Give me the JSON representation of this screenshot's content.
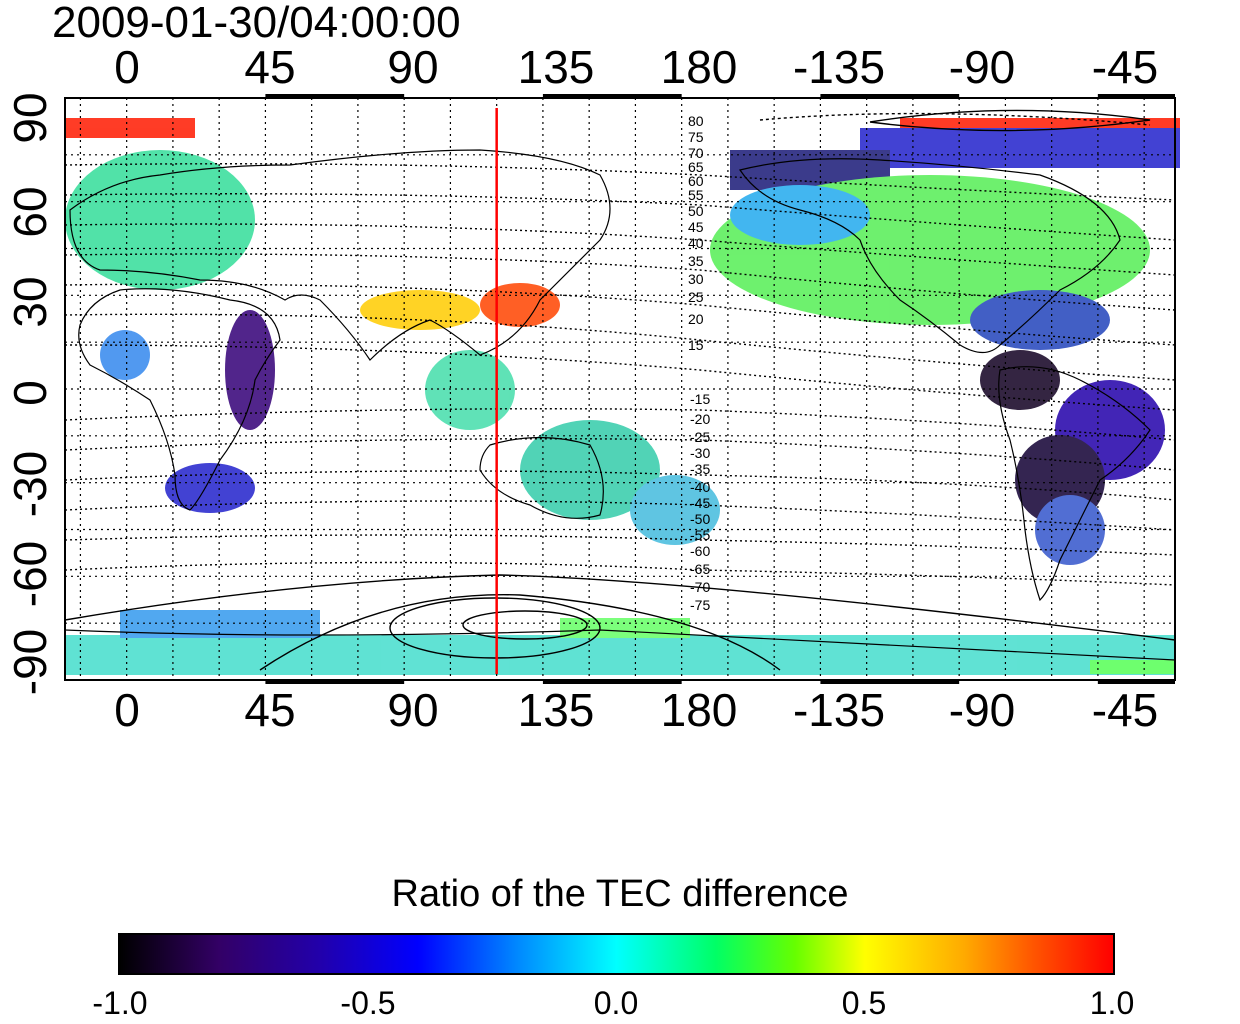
{
  "timestamp": "2009-01-30/04:00:00",
  "lon_tick_labels": [
    "0",
    "45",
    "90",
    "135",
    "180",
    "-135",
    "-90",
    "-45"
  ],
  "lat_tick_labels": [
    "90",
    "60",
    "30",
    "0",
    "-30",
    "-60",
    "-90"
  ],
  "contour_labels_north": [
    "80",
    "75",
    "70",
    "65",
    "60",
    "55",
    "50",
    "45",
    "40",
    "35",
    "30",
    "25",
    "20",
    "15"
  ],
  "contour_labels_south": [
    "-15",
    "-20",
    "-25",
    "-30",
    "-35",
    "-40",
    "-45",
    "-50",
    "-55",
    "-60",
    "-65",
    "-70",
    "-75"
  ],
  "reference_meridian_lon": 120,
  "colorbar": {
    "title": "Ratio of the TEC difference",
    "tick_labels": [
      "-1.0",
      "-0.5",
      "0.0",
      "0.5",
      "1.0"
    ],
    "colors": [
      "#000000",
      "#2200aa",
      "#0000ff",
      "#00ffff",
      "#00ff66",
      "#ffff00",
      "#ff0000"
    ]
  },
  "colors": {
    "meridian": "#ff0000",
    "coast": "#000000",
    "grid": "#000000"
  }
}
